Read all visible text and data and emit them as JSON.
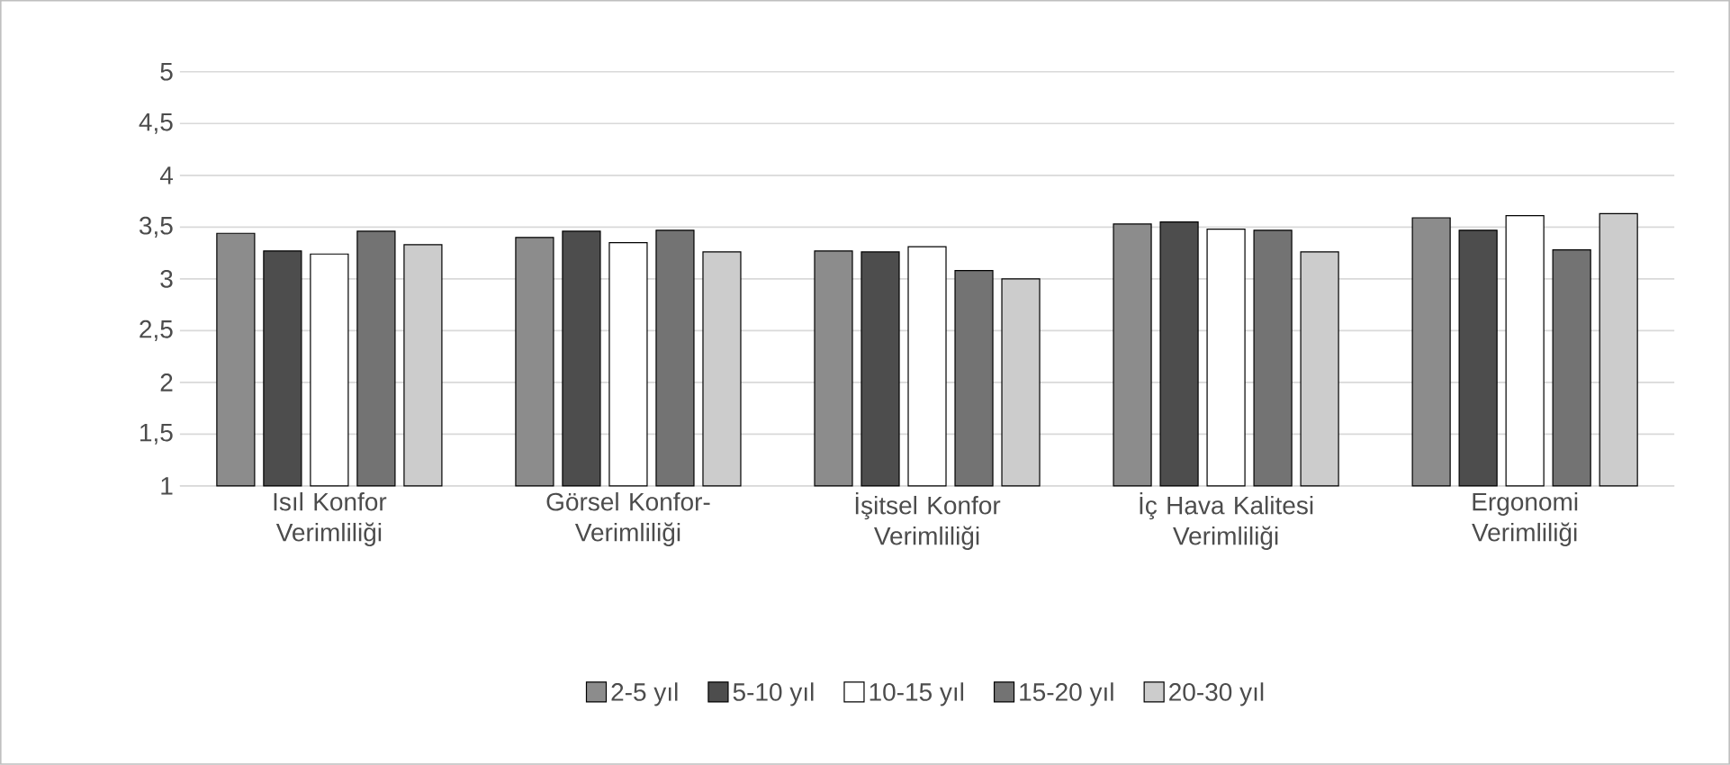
{
  "chart_data": {
    "type": "bar",
    "categories": [
      "Isıl Konfor Verimliliği",
      "Görsel Konfor-Verimliliği",
      "İşitsel Konfor Verimliliği",
      "İç Hava Kalitesi Verimliliği",
      "Ergonomi Verimliliği"
    ],
    "series": [
      {
        "name": "2-5 yıl",
        "color": "#8c8c8c",
        "values": [
          3.44,
          3.4,
          3.27,
          3.53,
          3.59
        ]
      },
      {
        "name": "5-10 yıl",
        "color": "#4d4d4d",
        "values": [
          3.27,
          3.46,
          3.26,
          3.55,
          3.47
        ]
      },
      {
        "name": "10-15 yıl",
        "color": "#ffffff",
        "values": [
          3.24,
          3.35,
          3.31,
          3.48,
          3.61
        ]
      },
      {
        "name": "15-20 yıl",
        "color": "#737373",
        "values": [
          3.46,
          3.47,
          3.08,
          3.47,
          3.28
        ]
      },
      {
        "name": "20-30 yıl",
        "color": "#cccccc",
        "values": [
          3.33,
          3.26,
          3.0,
          3.26,
          3.63
        ]
      }
    ],
    "ylim": [
      1,
      5
    ],
    "yticks": [
      1,
      {
        "value": 1.5,
        "label": "1,5"
      },
      2,
      {
        "value": 2.5,
        "label": "2,5"
      },
      3,
      {
        "value": 3.5,
        "label": "3,5"
      },
      4,
      {
        "value": 4.5,
        "label": "4,5"
      },
      5
    ],
    "grid": "y",
    "legend": "bottom"
  }
}
